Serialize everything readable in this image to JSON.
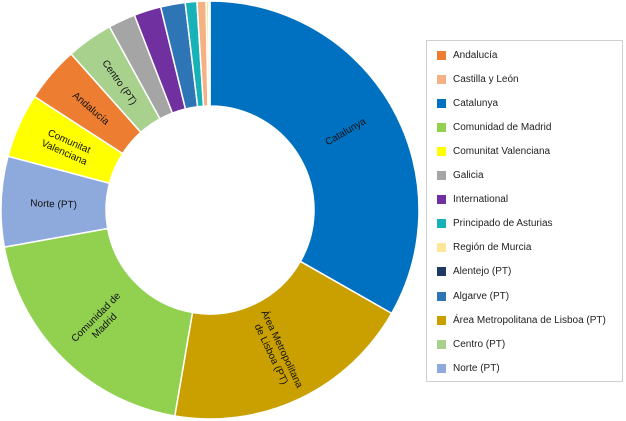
{
  "chart_data": {
    "type": "pie",
    "variant": "donut",
    "title": "",
    "legend_position": "right",
    "slices": [
      {
        "label": "Catalunya",
        "value": 33.3,
        "color": "#0070C0",
        "slice_label": [
          "Catalunya"
        ]
      },
      {
        "label": "Área Metropolitana de Lisboa (PT)",
        "value": 19.5,
        "color": "#C9A000",
        "slice_label": [
          "Área Metropolitana",
          "de Lisboa (PT)"
        ]
      },
      {
        "label": "Comunidad de Madrid",
        "value": 19.5,
        "color": "#92D050",
        "slice_label": [
          "Comunidad de",
          "Madrid"
        ]
      },
      {
        "label": "Norte (PT)",
        "value": 7.0,
        "color": "#8EA9DB",
        "slice_label": [
          "Norte (PT)"
        ]
      },
      {
        "label": "Comunitat Valenciana",
        "value": 5.0,
        "color": "#FFFF00",
        "slice_label": [
          "Comunitat",
          "Valenciana"
        ]
      },
      {
        "label": "Andalucía",
        "value": 4.3,
        "color": "#ED7D31",
        "slice_label": [
          "Andalucía"
        ]
      },
      {
        "label": "Centro (PT)",
        "value": 3.6,
        "color": "#A9D18E",
        "slice_label": [
          "Centro (PT)"
        ]
      },
      {
        "label": "Galicia",
        "value": 2.1,
        "color": "#A5A5A5",
        "slice_label": []
      },
      {
        "label": "International",
        "value": 2.1,
        "color": "#7030A0",
        "slice_label": []
      },
      {
        "label": "Algarve (PT)",
        "value": 1.9,
        "color": "#2E75B6",
        "slice_label": []
      },
      {
        "label": "Principado de Asturias",
        "value": 0.9,
        "color": "#17B1B8",
        "slice_label": []
      },
      {
        "label": "Castilla y León",
        "value": 0.7,
        "color": "#F4B183",
        "slice_label": []
      },
      {
        "label": "Región de Murcia",
        "value": 0.2,
        "color": "#FFE699",
        "slice_label": []
      },
      {
        "label": "Alentejo (PT)",
        "value": 0.1,
        "color": "#1F3864",
        "slice_label": []
      }
    ],
    "legend": [
      {
        "label": "Andalucía",
        "color": "#ED7D31"
      },
      {
        "label": "Castilla y León",
        "color": "#F4B183"
      },
      {
        "label": "Catalunya",
        "color": "#0070C0"
      },
      {
        "label": "Comunidad de Madrid",
        "color": "#92D050"
      },
      {
        "label": "Comunitat Valenciana",
        "color": "#FFFF00"
      },
      {
        "label": "Galicia",
        "color": "#A5A5A5"
      },
      {
        "label": "International",
        "color": "#7030A0"
      },
      {
        "label": "Principado de Asturias",
        "color": "#17B1B8"
      },
      {
        "label": "Región de Murcia",
        "color": "#FFE699"
      },
      {
        "label": "Alentejo (PT)",
        "color": "#1F3864"
      },
      {
        "label": "Algarve (PT)",
        "color": "#2E75B6"
      },
      {
        "label": "Área Metropolitana de Lisboa (PT)",
        "color": "#C9A000"
      },
      {
        "label": "Centro (PT)",
        "color": "#A9D18E"
      },
      {
        "label": "Norte (PT)",
        "color": "#8EA9DB"
      }
    ]
  }
}
